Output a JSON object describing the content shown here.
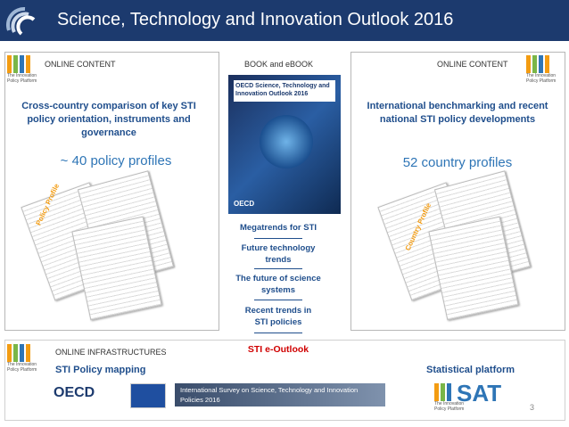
{
  "header": {
    "title": "Science, Technology and Innovation Outlook 2016"
  },
  "logo_text": "The Innovation Policy Platform",
  "left_panel": {
    "label": "ONLINE CONTENT",
    "heading": "Cross-country comparison of key STI policy orientation, instruments and governance",
    "highlight": "~ 40 policy profiles",
    "document_label": "Policy Profile"
  },
  "book": {
    "label": "BOOK and eBOOK",
    "cover_title": "OECD Science, Technology and Innovation Outlook 2016",
    "publisher": "OECD",
    "chapters": [
      "Megatrends for STI",
      "Future technology trends",
      "The future of science systems",
      "Recent trends in STI policies"
    ],
    "e_outlook": "STI e-Outlook"
  },
  "right_panel": {
    "label": "ONLINE CONTENT",
    "heading": "International benchmarking and recent national STI policy developments",
    "highlight": "52 country profiles",
    "document_label": "Country Profile"
  },
  "infrastructure": {
    "label": "ONLINE INFRASTRUCTURES",
    "policy_mapping": "STI Policy mapping",
    "statistical_platform": "Statistical platform",
    "oecd_logo": "OECD",
    "survey_banner": "International Survey on Science, Technology and Innovation Policies 2016",
    "stat_logo": "SAT"
  },
  "footer": {
    "page_number": 3
  }
}
